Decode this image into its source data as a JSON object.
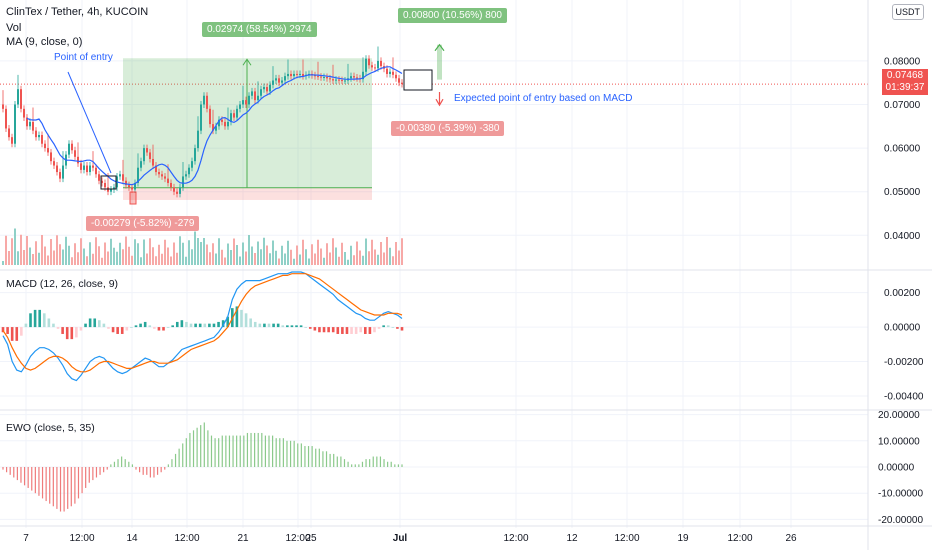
{
  "header": {
    "symbol_line": "ClinTex / Tether, 4h, KUCOIN",
    "vol_label": "Vol",
    "ma_label": "MA (9, close, 0)"
  },
  "currency_button": "USDT",
  "last_price": {
    "value": "0.07468",
    "countdown": "01:39:37"
  },
  "annotations": {
    "point_of_entry": "Point of entry",
    "expected_entry": "Expected point of entry based on MACD",
    "long_badge": "0.02974 (58.54%) 2974",
    "short_badge": "-0.00279 (-5.82%) -279",
    "target_up_badge": "0.00800 (10.56%) 800",
    "target_down_badge": "-0.00380 (-5.39%) -380"
  },
  "panes": {
    "macd_label": "MACD (12, 26, close, 9)",
    "ewo_label": "EWO (close, 5, 35)"
  },
  "colors": {
    "up": "#26a69a",
    "down": "#ef5350",
    "ma": "#2962ff",
    "macd_line": "#2196f3",
    "signal_line": "#ff6d00",
    "ewo_up": "#8bc98b",
    "ewo_down": "#ef7b7b"
  },
  "chart_data": [
    {
      "type": "candlestick",
      "title": "ClinTex / Tether, 4h, KUCOIN",
      "price_axis": [
        "0.08000",
        "0.07000",
        "0.06000",
        "0.05000",
        "0.04000"
      ],
      "ylim": [
        0.0325,
        0.0935
      ],
      "x_ticks": [
        "7",
        "12:00",
        "14",
        "12:00",
        "21",
        "12:00",
        "25",
        "Jul",
        "12:00",
        "12",
        "12:00",
        "19",
        "12:00",
        "26"
      ],
      "last_price": 0.07468,
      "approx_close": [
        0.069,
        0.0645,
        0.0625,
        0.061,
        0.07,
        0.0735,
        0.069,
        0.067,
        0.065,
        0.066,
        0.064,
        0.0625,
        0.063,
        0.061,
        0.06,
        0.059,
        0.057,
        0.056,
        0.0545,
        0.053,
        0.056,
        0.0585,
        0.061,
        0.0595,
        0.058,
        0.0565,
        0.055,
        0.056,
        0.0545,
        0.056,
        0.0555,
        0.054,
        0.0525,
        0.052,
        0.051,
        0.05,
        0.0505,
        0.051,
        0.0535,
        0.054,
        0.0525,
        0.0515,
        0.051,
        0.0505,
        0.052,
        0.0555,
        0.057,
        0.06,
        0.059,
        0.0575,
        0.056,
        0.0545,
        0.054,
        0.0535,
        0.053,
        0.052,
        0.051,
        0.05,
        0.0495,
        0.051,
        0.0535,
        0.054,
        0.0555,
        0.057,
        0.06,
        0.064,
        0.07,
        0.072,
        0.069,
        0.0655,
        0.064,
        0.065,
        0.0665,
        0.066,
        0.065,
        0.066,
        0.068,
        0.067,
        0.069,
        0.07,
        0.071,
        0.07,
        0.072,
        0.073,
        0.071,
        0.072,
        0.0735,
        0.074,
        0.073,
        0.0745,
        0.0755,
        0.076,
        0.075,
        0.0755,
        0.0765,
        0.077,
        0.0765,
        0.077,
        0.0768,
        0.077,
        0.0765,
        0.0768,
        0.077,
        0.0767,
        0.0765,
        0.0764,
        0.0762,
        0.0763,
        0.076,
        0.0758,
        0.0755,
        0.0757,
        0.0756,
        0.0755,
        0.0755,
        0.076,
        0.0765,
        0.0762,
        0.076,
        0.0758,
        0.0775,
        0.0805,
        0.079,
        0.0785,
        0.0783,
        0.08,
        0.0788,
        0.0782,
        0.077,
        0.0775,
        0.0768,
        0.076,
        0.075,
        0.0747
      ],
      "long_position": {
        "entry": 0.0509,
        "target": 0.0806,
        "stop": 0.0481
      },
      "projection": {
        "entry": 0.0757,
        "target": 0.0837,
        "stop": 0.0719
      }
    },
    {
      "type": "bar",
      "title": "MACD (12, 26, close, 9)",
      "y_ticks": [
        "0.00200",
        "0.00000",
        "-0.00200",
        "-0.00400"
      ],
      "ylim": [
        -0.0047,
        0.0032
      ],
      "macd": [
        -0.0005,
        -0.001,
        -0.002,
        -0.0025,
        -0.0026,
        -0.0022,
        -0.0017,
        -0.0014,
        -0.0012,
        -0.0012,
        -0.0013,
        -0.0015,
        -0.0018,
        -0.0022,
        -0.0027,
        -0.003,
        -0.0031,
        -0.0028,
        -0.0024,
        -0.002,
        -0.0018,
        -0.0017,
        -0.0018,
        -0.0021,
        -0.0024,
        -0.0026,
        -0.0027,
        -0.0026,
        -0.0024,
        -0.0022,
        -0.002,
        -0.0018,
        -0.0019,
        -0.0021,
        -0.0023,
        -0.0023,
        -0.0021,
        -0.0019,
        -0.0016,
        -0.0013,
        -0.0012,
        -0.0011,
        -0.001,
        -0.0009,
        -0.0008,
        -0.0007,
        -0.0006,
        -0.0003,
        0.0001,
        0.0006,
        0.0016,
        0.0022,
        0.0025,
        0.0027,
        0.0027,
        0.0027,
        0.0027,
        0.0028,
        0.0029,
        0.003,
        0.0031,
        0.0031,
        0.0031,
        0.0032,
        0.0032,
        0.0032,
        0.0031,
        0.0029,
        0.0027,
        0.0025,
        0.0023,
        0.0021,
        0.0019,
        0.0016,
        0.0014,
        0.0012,
        0.001,
        0.0008,
        0.0007,
        0.0005,
        0.0004,
        0.0004,
        0.0006,
        0.0008,
        0.0009,
        0.0008,
        0.0007,
        0.0005
      ],
      "signal": [
        -0.0002,
        -0.0006,
        -0.0012,
        -0.0017,
        -0.0021,
        -0.0024,
        -0.0025,
        -0.0024,
        -0.0022,
        -0.002,
        -0.0018,
        -0.0017,
        -0.0017,
        -0.0018,
        -0.002,
        -0.0023,
        -0.0025,
        -0.0026,
        -0.0026,
        -0.0025,
        -0.0023,
        -0.0021,
        -0.002,
        -0.002,
        -0.0021,
        -0.0022,
        -0.0023,
        -0.0024,
        -0.0024,
        -0.0023,
        -0.0022,
        -0.0021,
        -0.002,
        -0.002,
        -0.0021,
        -0.0021,
        -0.0021,
        -0.002,
        -0.0019,
        -0.0017,
        -0.0015,
        -0.0013,
        -0.0012,
        -0.0011,
        -0.001,
        -0.0009,
        -0.0008,
        -0.0006,
        -0.0003,
        0.0,
        0.0005,
        0.001,
        0.0015,
        0.0019,
        0.0022,
        0.0024,
        0.0025,
        0.0026,
        0.0027,
        0.0028,
        0.0029,
        0.003,
        0.003,
        0.0031,
        0.0031,
        0.0031,
        0.0031,
        0.003,
        0.0029,
        0.0028,
        0.0026,
        0.0024,
        0.0022,
        0.002,
        0.0018,
        0.0016,
        0.0014,
        0.0012,
        0.001,
        0.0009,
        0.0008,
        0.0007,
        0.0007,
        0.0007,
        0.0008,
        0.0008,
        0.0008,
        0.0007
      ]
    },
    {
      "type": "bar",
      "title": "EWO (close, 5, 35)",
      "y_ticks": [
        "20.00000",
        "10.00000",
        "0.00000",
        "-10.00000",
        "-20.00000"
      ],
      "ylim": [
        -21,
        21
      ],
      "values": [
        -1,
        -2,
        -3,
        -4,
        -5,
        -6,
        -7,
        -8,
        -9,
        -10,
        -11,
        -12,
        -13,
        -14,
        -15,
        -16,
        -17,
        -17,
        -16,
        -15,
        -14,
        -12,
        -10,
        -8,
        -6,
        -5,
        -4,
        -3,
        -2,
        -1,
        1,
        2,
        3,
        4,
        3,
        2,
        1,
        -1,
        -2,
        -3,
        -3,
        -4,
        -4,
        -3,
        -2,
        -1,
        1,
        3,
        5,
        7,
        9,
        11,
        13,
        14,
        15,
        16,
        17,
        14,
        12,
        11,
        11,
        12,
        12,
        12,
        12,
        12,
        12,
        12,
        13,
        13,
        13,
        13,
        13,
        12,
        12,
        12,
        11,
        11,
        11,
        10,
        10,
        10,
        9,
        9,
        8,
        8,
        8,
        7,
        7,
        6,
        6,
        5,
        5,
        4,
        4,
        3,
        2,
        1,
        1,
        1,
        2,
        3,
        3,
        4,
        4,
        4,
        3,
        2,
        2,
        1,
        1,
        1
      ]
    }
  ]
}
